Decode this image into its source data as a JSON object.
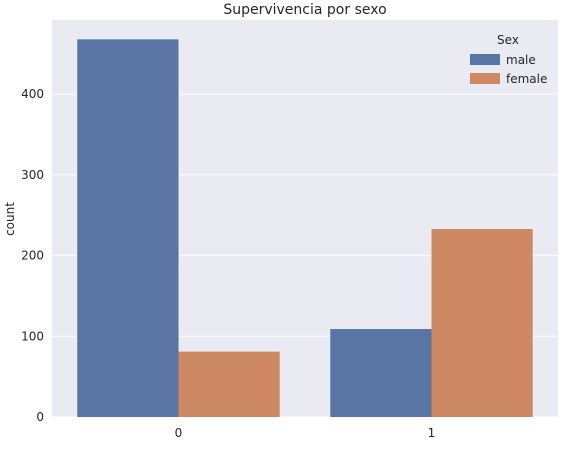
{
  "chart_data": {
    "type": "bar",
    "title": "Supervivencia por sexo",
    "xlabel": "",
    "ylabel": "count",
    "categories": [
      "0",
      "1"
    ],
    "series": [
      {
        "name": "male",
        "values": [
          468,
          109
        ]
      },
      {
        "name": "female",
        "values": [
          81,
          233
        ]
      }
    ],
    "ylim": [
      0,
      492
    ],
    "yticks": [
      0,
      100,
      200,
      300,
      400
    ],
    "grid": true,
    "legend": {
      "title": "Sex",
      "position": "top-right"
    },
    "colors": {
      "male": "#5875a4",
      "female": "#cc8963",
      "plot_background": "#eaeaf2",
      "grid": "#ffffff"
    }
  }
}
